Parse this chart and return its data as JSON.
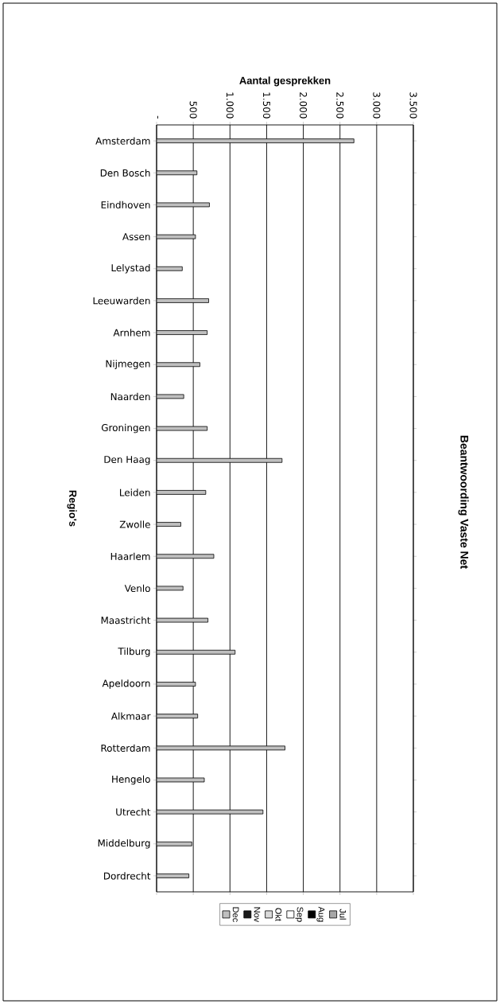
{
  "chart_data": {
    "type": "bar",
    "orientation": "horizontal",
    "title": "Beantwoording Vaste Net",
    "xlabel": "Aantal gesprekken",
    "ylabel": "Regio's",
    "categories": [
      "Amsterdam",
      "Den Bosch",
      "Eindhoven",
      "Assen",
      "Lelystad",
      "Leeuwarden",
      "Arnhem",
      "Nijmegen",
      "Naarden",
      "Groningen",
      "Den Haag",
      "Leiden",
      "Zwolle",
      "Haarlem",
      "Venlo",
      "Maastricht",
      "Tilburg",
      "Apeldoorn",
      "Alkmaar",
      "Rotterdam",
      "Hengelo",
      "Utrecht",
      "Middelburg",
      "Dordrecht"
    ],
    "series": [
      {
        "name": "Jul",
        "color": "#a6a6a6",
        "values": [
          null,
          null,
          null,
          null,
          null,
          null,
          null,
          null,
          null,
          null,
          null,
          null,
          null,
          null,
          null,
          null,
          null,
          null,
          null,
          null,
          null,
          null,
          null,
          null
        ]
      },
      {
        "name": "Aug",
        "color": "#000000",
        "values": [
          null,
          null,
          null,
          null,
          null,
          null,
          null,
          null,
          null,
          null,
          null,
          null,
          null,
          null,
          null,
          null,
          null,
          null,
          null,
          null,
          null,
          null,
          null,
          null
        ]
      },
      {
        "name": "Sep",
        "color": "#ffffff",
        "values": [
          null,
          null,
          null,
          null,
          null,
          null,
          null,
          null,
          null,
          null,
          null,
          null,
          null,
          null,
          null,
          null,
          null,
          null,
          null,
          null,
          null,
          null,
          null,
          null
        ]
      },
      {
        "name": "Okt",
        "color": "#d9d9d9",
        "values": [
          null,
          null,
          null,
          null,
          null,
          null,
          null,
          null,
          null,
          null,
          null,
          null,
          null,
          null,
          null,
          null,
          null,
          null,
          null,
          null,
          null,
          null,
          null,
          null
        ]
      },
      {
        "name": "Nov",
        "color": "#1a1a1a",
        "values": [
          null,
          null,
          null,
          null,
          null,
          null,
          null,
          null,
          null,
          null,
          null,
          null,
          null,
          null,
          null,
          null,
          null,
          null,
          null,
          null,
          null,
          null,
          null,
          null
        ]
      },
      {
        "name": "Dec",
        "color": "#bfbfbf",
        "values": [
          2690,
          550,
          720,
          530,
          350,
          710,
          690,
          590,
          370,
          690,
          1710,
          670,
          330,
          780,
          360,
          700,
          1070,
          530,
          560,
          1750,
          650,
          1450,
          480,
          440
        ]
      }
    ],
    "xlim": [
      0,
      3500
    ],
    "xticks": [
      {
        "value": 0,
        "label": "-"
      },
      {
        "value": 500,
        "label": "500"
      },
      {
        "value": 1000,
        "label": "1.000"
      },
      {
        "value": 1500,
        "label": "1.500"
      },
      {
        "value": 2000,
        "label": "2.000"
      },
      {
        "value": 2500,
        "label": "2.500"
      },
      {
        "value": 3000,
        "label": "3.000"
      },
      {
        "value": 3500,
        "label": "3.500"
      }
    ],
    "grid": "x",
    "legend": "bottom"
  }
}
